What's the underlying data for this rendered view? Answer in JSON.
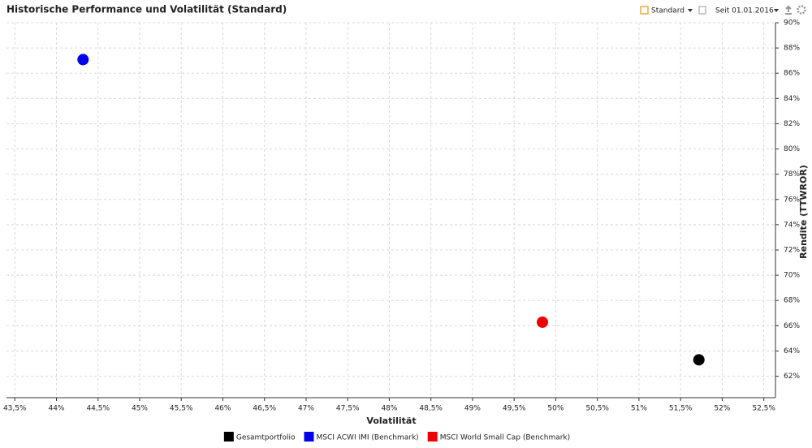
{
  "title": "Historische Performance und Volatilität (Standard)",
  "controls": {
    "view": "Standard",
    "period": "Seit 01.01.2016"
  },
  "chart_data": {
    "type": "scatter",
    "x_label": "Volatilität",
    "y_label": "Rendite (TTWROR)",
    "xlim": [
      43.4,
      52.64
    ],
    "ylim": [
      60.3,
      90
    ],
    "xticks": [
      {
        "value": 43.5,
        "label": "43,5%"
      },
      {
        "value": 44,
        "label": "44%"
      },
      {
        "value": 44.5,
        "label": "44,5%"
      },
      {
        "value": 45,
        "label": "45%"
      },
      {
        "value": 45.5,
        "label": "45,5%"
      },
      {
        "value": 46,
        "label": "46%"
      },
      {
        "value": 46.5,
        "label": "46,5%"
      },
      {
        "value": 47,
        "label": "47%"
      },
      {
        "value": 47.5,
        "label": "47,5%"
      },
      {
        "value": 48,
        "label": "48%"
      },
      {
        "value": 48.5,
        "label": "48,5%"
      },
      {
        "value": 49,
        "label": "49%"
      },
      {
        "value": 49.5,
        "label": "49,5%"
      },
      {
        "value": 50,
        "label": "50%"
      },
      {
        "value": 50.5,
        "label": "50,5%"
      },
      {
        "value": 51,
        "label": "51%"
      },
      {
        "value": 51.5,
        "label": "51,5%"
      },
      {
        "value": 52,
        "label": "52%"
      },
      {
        "value": 52.5,
        "label": "52,5%"
      }
    ],
    "yticks": [
      {
        "value": 62,
        "label": "62%"
      },
      {
        "value": 64,
        "label": "64%"
      },
      {
        "value": 66,
        "label": "66%"
      },
      {
        "value": 68,
        "label": "68%"
      },
      {
        "value": 70,
        "label": "70%"
      },
      {
        "value": 72,
        "label": "72%"
      },
      {
        "value": 74,
        "label": "74%"
      },
      {
        "value": 76,
        "label": "76%"
      },
      {
        "value": 78,
        "label": "78%"
      },
      {
        "value": 80,
        "label": "80%"
      },
      {
        "value": 82,
        "label": "82%"
      },
      {
        "value": 84,
        "label": "84%"
      },
      {
        "value": 86,
        "label": "86%"
      },
      {
        "value": 88,
        "label": "88%"
      },
      {
        "value": 90,
        "label": "90%"
      }
    ],
    "grid": true,
    "series": [
      {
        "name": "Gesamtportfolio",
        "color": "#000000",
        "x": [
          51.72
        ],
        "values": [
          63.3
        ]
      },
      {
        "name": "MSCI ACWI IMI (Benchmark)",
        "color": "#0000ee",
        "x": [
          44.32
        ],
        "values": [
          87.08
        ]
      },
      {
        "name": "MSCI World Small Cap (Benchmark)",
        "color": "#ee0000",
        "x": [
          49.84
        ],
        "values": [
          66.28
        ]
      }
    ]
  }
}
